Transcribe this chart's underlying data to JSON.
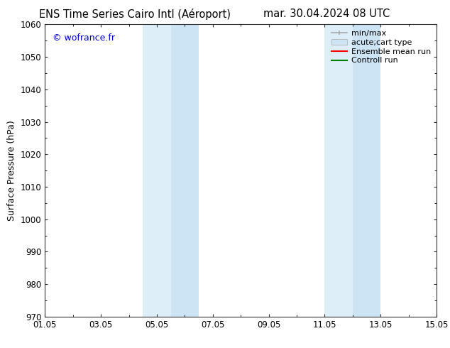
{
  "title_left": "ENS Time Series Cairo Intl (Aéroport)",
  "title_right": "mar. 30.04.2024 08 UTC",
  "ylabel": "Surface Pressure (hPa)",
  "ylim": [
    970,
    1060
  ],
  "yticks": [
    970,
    980,
    990,
    1000,
    1010,
    1020,
    1030,
    1040,
    1050,
    1060
  ],
  "xtick_labels": [
    "01.05",
    "03.05",
    "05.05",
    "07.05",
    "09.05",
    "11.05",
    "13.05",
    "15.05"
  ],
  "xtick_positions": [
    0,
    2,
    4,
    6,
    8,
    10,
    12,
    14
  ],
  "shaded_bands": [
    {
      "x_start": 3.5,
      "x_end": 4.5,
      "color": "#ddeef8"
    },
    {
      "x_start": 4.5,
      "x_end": 5.5,
      "color": "#cce4f4"
    },
    {
      "x_start": 10.0,
      "x_end": 11.0,
      "color": "#ddeef8"
    },
    {
      "x_start": 11.0,
      "x_end": 12.0,
      "color": "#cce4f4"
    }
  ],
  "watermark": "© wofrance.fr",
  "watermark_color": "#0000cc",
  "legend_minmax_color": "#aaaaaa",
  "legend_acute_color": "#cce4f4",
  "legend_ens_color": "#ff0000",
  "legend_ctrl_color": "#008000",
  "background_color": "#ffffff",
  "tick_color": "#333333",
  "font_size_title": 10.5,
  "font_size_tick": 8.5,
  "font_size_ylabel": 9,
  "font_size_legend": 8,
  "font_size_watermark": 9
}
